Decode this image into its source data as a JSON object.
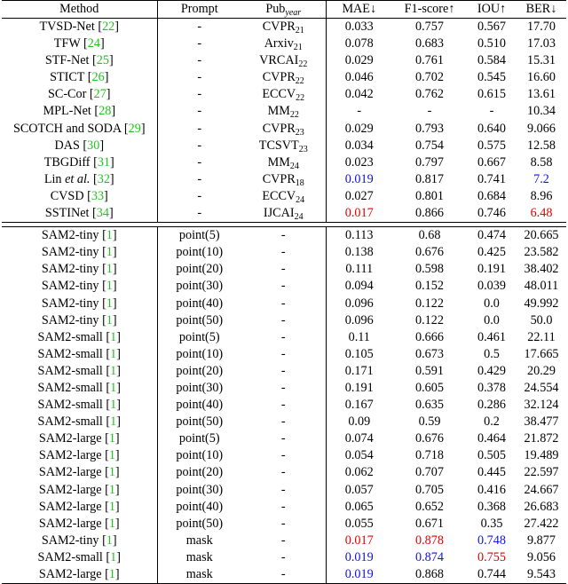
{
  "header": {
    "method": "Method",
    "prompt": "Prompt",
    "pub_base": "Pub",
    "pub_sub": "year",
    "mae": "MAE↓",
    "f1": "F1-score↑",
    "iou": "IOU↑",
    "ber": "BER↓"
  },
  "section1": [
    {
      "method": "TVSD-Net",
      "ref": "22",
      "prompt": "-",
      "venue": "CVPR",
      "year": "21",
      "mae": "0.033",
      "f1": "0.757",
      "iou": "0.567",
      "ber": "17.70"
    },
    {
      "method": "TFW",
      "ref": "24",
      "prompt": "-",
      "venue": "Arxiv",
      "year": "21",
      "mae": "0.078",
      "f1": "0.683",
      "iou": "0.510",
      "ber": "17.03"
    },
    {
      "method": "STF-Net",
      "ref": "25",
      "prompt": "-",
      "venue": "VRCAI",
      "year": "22",
      "mae": "0.029",
      "f1": "0.761",
      "iou": "0.584",
      "ber": "15.31"
    },
    {
      "method": "STICT",
      "ref": "26",
      "prompt": "-",
      "venue": "CVPR",
      "year": "22",
      "mae": "0.046",
      "f1": "0.702",
      "iou": "0.545",
      "ber": "16.60"
    },
    {
      "method": "SC-Cor",
      "ref": "27",
      "prompt": "-",
      "venue": "ECCV",
      "year": "22",
      "mae": "0.042",
      "f1": "0.762",
      "iou": "0.615",
      "ber": "13.61"
    },
    {
      "method": "MPL-Net",
      "ref": "28",
      "prompt": "-",
      "venue": "MM",
      "year": "22",
      "mae": "-",
      "f1": "-",
      "iou": "-",
      "ber": "10.34"
    },
    {
      "method": "SCOTCH and SODA",
      "ref": "29",
      "prompt": "-",
      "venue": "CVPR",
      "year": "23",
      "mae": "0.029",
      "f1": "0.793",
      "iou": "0.640",
      "ber": "9.066"
    },
    {
      "method": "DAS",
      "ref": "30",
      "prompt": "-",
      "venue": "TCSVT",
      "year": "23",
      "mae": "0.034",
      "f1": "0.754",
      "iou": "0.575",
      "ber": "12.58"
    },
    {
      "method": "TBGDiff",
      "ref": "31",
      "prompt": "-",
      "venue": "MM",
      "year": "24",
      "mae": "0.023",
      "f1": "0.797",
      "iou": "0.667",
      "ber": "8.58"
    },
    {
      "method": "Lin",
      "method_it": "et al.",
      "ref": "32",
      "prompt": "-",
      "venue": "CVPR",
      "year": "18",
      "mae": "0.019",
      "f1": "0.817",
      "iou": "0.741",
      "ber": "7.2",
      "mae_color": "blue",
      "ber_color": "blue"
    },
    {
      "method": "CVSD",
      "ref": "33",
      "prompt": "-",
      "venue": "ECCV",
      "year": "24",
      "mae": "0.027",
      "f1": "0.801",
      "iou": "0.684",
      "ber": "8.96"
    },
    {
      "method": "SSTINet",
      "ref": "34",
      "prompt": "-",
      "venue": "IJCAI",
      "year": "24",
      "mae": "0.017",
      "f1": "0.866",
      "iou": "0.746",
      "ber": "6.48",
      "mae_color": "red",
      "ber_color": "red"
    }
  ],
  "section2": [
    {
      "method": "SAM2-tiny",
      "ref": "1",
      "prompt": "point(5)",
      "pub": "-",
      "mae": "0.113",
      "f1": "0.68",
      "iou": "0.474",
      "ber": "20.665"
    },
    {
      "method": "SAM2-tiny",
      "ref": "1",
      "prompt": "point(10)",
      "pub": "-",
      "mae": "0.138",
      "f1": "0.676",
      "iou": "0.425",
      "ber": "23.582"
    },
    {
      "method": "SAM2-tiny",
      "ref": "1",
      "prompt": "point(20)",
      "pub": "-",
      "mae": "0.111",
      "f1": "0.598",
      "iou": "0.191",
      "ber": "38.402"
    },
    {
      "method": "SAM2-tiny",
      "ref": "1",
      "prompt": "point(30)",
      "pub": "-",
      "mae": "0.094",
      "f1": "0.152",
      "iou": "0.039",
      "ber": "48.011"
    },
    {
      "method": "SAM2-tiny",
      "ref": "1",
      "prompt": "point(40)",
      "pub": "-",
      "mae": "0.096",
      "f1": "0.122",
      "iou": "0.0",
      "ber": "49.992"
    },
    {
      "method": "SAM2-tiny",
      "ref": "1",
      "prompt": "point(50)",
      "pub": "-",
      "mae": "0.096",
      "f1": "0.122",
      "iou": "0.0",
      "ber": "50.0"
    },
    {
      "method": "SAM2-small",
      "ref": "1",
      "prompt": "point(5)",
      "pub": "-",
      "mae": "0.11",
      "f1": "0.666",
      "iou": "0.461",
      "ber": "22.11"
    },
    {
      "method": "SAM2-small",
      "ref": "1",
      "prompt": "point(10)",
      "pub": "-",
      "mae": "0.105",
      "f1": "0.673",
      "iou": "0.5",
      "ber": "17.665"
    },
    {
      "method": "SAM2-small",
      "ref": "1",
      "prompt": "point(20)",
      "pub": "-",
      "mae": "0.171",
      "f1": "0.591",
      "iou": "0.429",
      "ber": "20.29"
    },
    {
      "method": "SAM2-small",
      "ref": "1",
      "prompt": "point(30)",
      "pub": "-",
      "mae": "0.191",
      "f1": "0.605",
      "iou": "0.378",
      "ber": "24.554"
    },
    {
      "method": "SAM2-small",
      "ref": "1",
      "prompt": "point(40)",
      "pub": "-",
      "mae": "0.167",
      "f1": "0.635",
      "iou": "0.286",
      "ber": "32.124"
    },
    {
      "method": "SAM2-small",
      "ref": "1",
      "prompt": "point(50)",
      "pub": "-",
      "mae": "0.09",
      "f1": "0.59",
      "iou": "0.2",
      "ber": "38.477"
    },
    {
      "method": "SAM2-large",
      "ref": "1",
      "prompt": "point(5)",
      "pub": "-",
      "mae": "0.074",
      "f1": "0.676",
      "iou": "0.464",
      "ber": "21.872"
    },
    {
      "method": "SAM2-large",
      "ref": "1",
      "prompt": "point(10)",
      "pub": "-",
      "mae": "0.054",
      "f1": "0.718",
      "iou": "0.505",
      "ber": "19.489"
    },
    {
      "method": "SAM2-large",
      "ref": "1",
      "prompt": "point(20)",
      "pub": "-",
      "mae": "0.062",
      "f1": "0.707",
      "iou": "0.445",
      "ber": "22.597"
    },
    {
      "method": "SAM2-large",
      "ref": "1",
      "prompt": "point(30)",
      "pub": "-",
      "mae": "0.057",
      "f1": "0.705",
      "iou": "0.416",
      "ber": "24.667"
    },
    {
      "method": "SAM2-large",
      "ref": "1",
      "prompt": "point(40)",
      "pub": "-",
      "mae": "0.065",
      "f1": "0.652",
      "iou": "0.368",
      "ber": "26.683"
    },
    {
      "method": "SAM2-large",
      "ref": "1",
      "prompt": "point(50)",
      "pub": "-",
      "mae": "0.055",
      "f1": "0.671",
      "iou": "0.35",
      "ber": "27.422"
    },
    {
      "method": "SAM2-tiny",
      "ref": "1",
      "prompt": "mask",
      "pub": "-",
      "mae": "0.017",
      "f1": "0.878",
      "iou": "0.748",
      "ber": "9.877",
      "mae_color": "red",
      "f1_color": "red",
      "iou_color": "blue"
    },
    {
      "method": "SAM2-small",
      "ref": "1",
      "prompt": "mask",
      "pub": "-",
      "mae": "0.019",
      "f1": "0.874",
      "iou": "0.755",
      "ber": "9.056",
      "mae_color": "blue",
      "f1_color": "blue",
      "iou_color": "red"
    },
    {
      "method": "SAM2-large",
      "ref": "1",
      "prompt": "mask",
      "pub": "-",
      "mae": "0.019",
      "f1": "0.868",
      "iou": "0.744",
      "ber": "9.543",
      "mae_color": "blue"
    }
  ],
  "colors": {
    "best": "#e00000",
    "second": "#1010e0",
    "citation": "#1ec21e"
  }
}
